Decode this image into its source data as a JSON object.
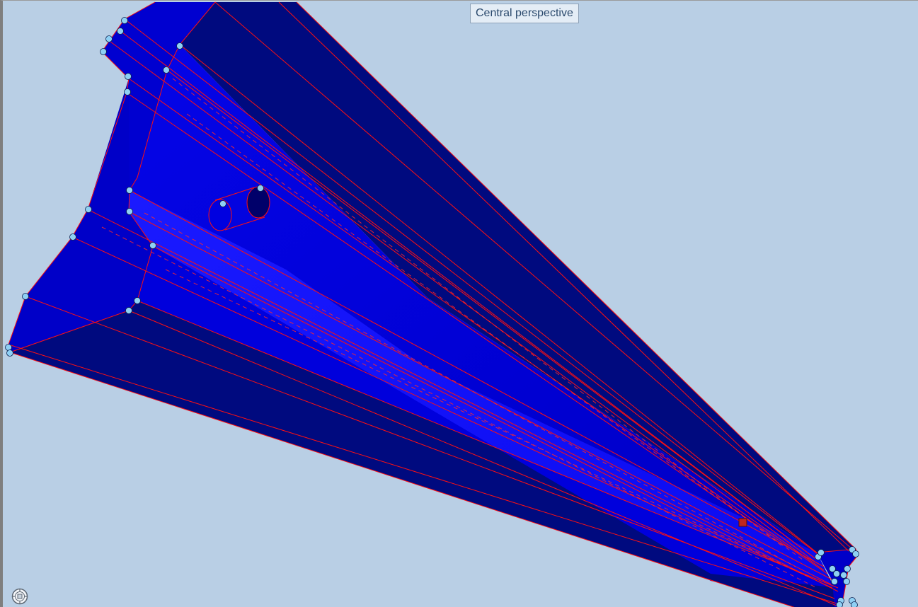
{
  "viewport": {
    "view_mode_label": "Central perspective"
  },
  "model": {
    "face_color_dark": "#000a7f",
    "face_color_mid": "#0000d8",
    "face_color_bright": "#1515ff",
    "edge_color": "#ff1010",
    "vertex_color": "#8fd0f4",
    "selected_point_color": "#c0271f"
  },
  "icons": {
    "navigation": "navigation-cube-icon"
  }
}
